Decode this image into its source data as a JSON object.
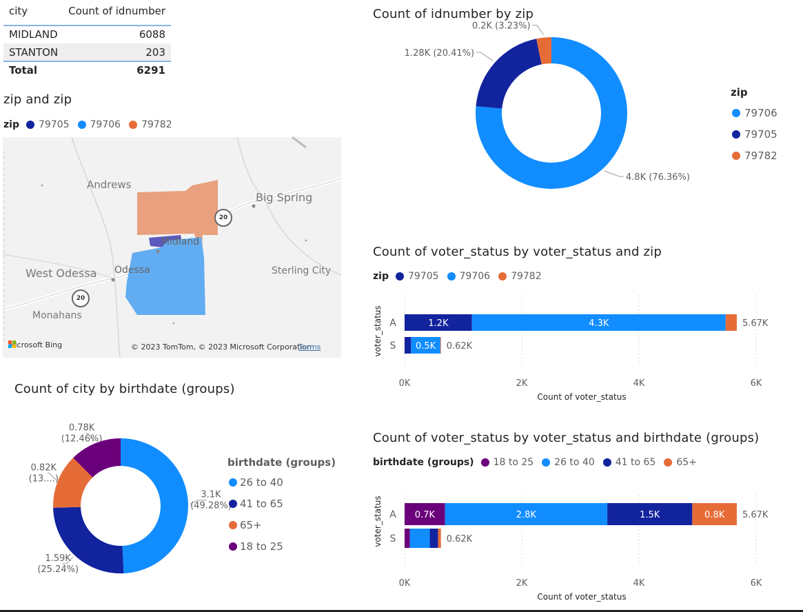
{
  "table": {
    "headers": [
      "city",
      "Count of idnumber"
    ],
    "rows": [
      {
        "city": "MIDLAND",
        "count": "6088"
      },
      {
        "city": "STANTON",
        "count": "203"
      }
    ],
    "total_label": "Total",
    "total_value": "6291"
  },
  "map": {
    "title": "zip and zip",
    "legend_title": "zip",
    "legend": [
      {
        "label": "79705",
        "color": "#12239e"
      },
      {
        "label": "79706",
        "color": "#118dff"
      },
      {
        "label": "79782",
        "color": "#e66c37"
      }
    ],
    "places": [
      "Andrews",
      "Big Spring",
      "Midland",
      "West Odessa",
      "Odessa",
      "Sterling City",
      "Monahans"
    ],
    "highway": "20",
    "bing": "Microsoft Bing",
    "copyright": "© 2023 TomTom, © 2023 Microsoft Corporation",
    "terms": "Terms"
  },
  "colors": {
    "blue_dark": "#12239e",
    "blue": "#118dff",
    "orange": "#e66c37",
    "purple": "#6b007b"
  },
  "chart_data": [
    {
      "id": "zip-donut",
      "type": "pie",
      "title": "Count of idnumber by zip",
      "legend_title": "zip",
      "legend_position": "right",
      "slices": [
        {
          "label": "79706",
          "value": 4.8,
          "display": "4.8K (76.36%)",
          "color": "#118dff"
        },
        {
          "label": "79705",
          "value": 1.28,
          "display": "1.28K (20.41%)",
          "color": "#12239e"
        },
        {
          "label": "79782",
          "value": 0.2,
          "display": "0.2K (3.23%)",
          "color": "#e66c37"
        }
      ]
    },
    {
      "id": "voter-zip-bar",
      "type": "bar",
      "orientation": "horizontal",
      "stacked": true,
      "title": "Count of voter_status by voter_status and zip",
      "legend_title": "zip",
      "xlabel": "Count of voter_status",
      "ylabel": "voter_status",
      "xlim": [
        0,
        6000
      ],
      "xticks": [
        "0K",
        "2K",
        "4K",
        "6K"
      ],
      "categories": [
        "A",
        "S"
      ],
      "totals": [
        "5.67K",
        "0.62K"
      ],
      "series": [
        {
          "name": "79705",
          "color": "#12239e",
          "values": [
            1150,
            110
          ],
          "labels": [
            "1.2K",
            ""
          ]
        },
        {
          "name": "79706",
          "color": "#118dff",
          "values": [
            4330,
            500
          ],
          "labels": [
            "4.3K",
            "0.5K"
          ]
        },
        {
          "name": "79782",
          "color": "#e66c37",
          "values": [
            190,
            10
          ],
          "labels": [
            "",
            ""
          ]
        }
      ]
    },
    {
      "id": "city-birth-donut",
      "type": "pie",
      "title": "Count of city by birthdate (groups)",
      "legend_title": "birthdate (groups)",
      "legend_position": "right",
      "legend_order": [
        "26 to 40",
        "41 to 65",
        "65+",
        "18 to 25"
      ],
      "slices": [
        {
          "label": "26 to 40",
          "value": 3.1,
          "display_top": "3.1K",
          "display_bottom": "(49.28%)",
          "color": "#118dff"
        },
        {
          "label": "41 to 65",
          "value": 1.59,
          "display_top": "1.59K",
          "display_bottom": "(25.24%)",
          "color": "#12239e"
        },
        {
          "label": "65+",
          "value": 0.82,
          "display_top": "0.82K",
          "display_bottom": "(13....)",
          "color": "#e66c37"
        },
        {
          "label": "18 to 25",
          "value": 0.78,
          "display_top": "0.78K",
          "display_bottom": "(12.46%)",
          "color": "#6b007b"
        }
      ]
    },
    {
      "id": "voter-birth-bar",
      "type": "bar",
      "orientation": "horizontal",
      "stacked": true,
      "title": "Count of voter_status by voter_status and birthdate (groups)",
      "legend_title": "birthdate (groups)",
      "xlabel": "Count of voter_status",
      "ylabel": "voter_status",
      "xlim": [
        0,
        6000
      ],
      "xticks": [
        "0K",
        "2K",
        "4K",
        "6K"
      ],
      "categories": [
        "A",
        "S"
      ],
      "totals": [
        "5.67K",
        "0.62K"
      ],
      "series": [
        {
          "name": "18 to 25",
          "color": "#6b007b",
          "values": [
            690,
            90
          ],
          "labels": [
            "0.7K",
            ""
          ]
        },
        {
          "name": "26 to 40",
          "color": "#118dff",
          "values": [
            2770,
            340
          ],
          "labels": [
            "2.8K",
            ""
          ]
        },
        {
          "name": "41 to 65",
          "color": "#12239e",
          "values": [
            1450,
            140
          ],
          "labels": [
            "1.5K",
            ""
          ]
        },
        {
          "name": "65+",
          "color": "#e66c37",
          "values": [
            760,
            50
          ],
          "labels": [
            "0.8K",
            ""
          ]
        }
      ]
    }
  ]
}
